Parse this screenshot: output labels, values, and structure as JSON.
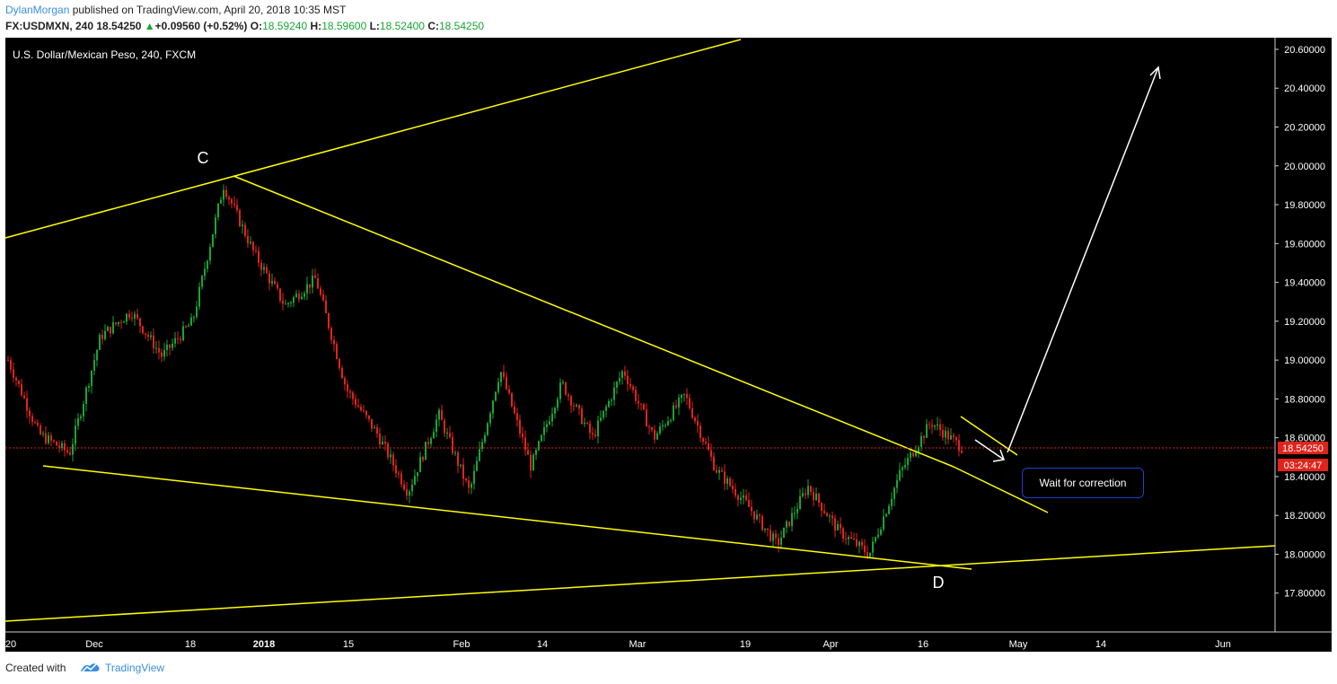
{
  "header": {
    "author": "DylanMorgan",
    "published_text": " published on TradingView.com, April 20, 2018 10:35 MST",
    "symbol": "FX:USDMXN, 240",
    "last": "18.54250",
    "change": "+0.09560 (+0.52%)",
    "o_label": "O:",
    "o_value": "18.59240",
    "h_label": "H:",
    "h_value": "18.59600",
    "l_label": "L:",
    "l_value": "18.52400",
    "c_label": "C:",
    "c_value": "18.54250"
  },
  "chart_data": {
    "type": "candlestick",
    "title": "U.S. Dollar/Mexican Peso, 240, FXCM",
    "y_ticks": [
      "20.60000",
      "20.40000",
      "20.20000",
      "20.00000",
      "19.80000",
      "19.60000",
      "19.40000",
      "19.20000",
      "19.00000",
      "18.80000",
      "18.60000",
      "18.40000",
      "18.20000",
      "18.00000",
      "17.80000"
    ],
    "ylim": [
      17.6,
      20.66
    ],
    "x_ticks": [
      "20",
      "Dec",
      "18",
      "2018",
      "15",
      "Feb",
      "14",
      "Mar",
      "19",
      "Apr",
      "16",
      "May",
      "14",
      "Jun"
    ],
    "price_label": "18.54250",
    "countdown": "03:24:47",
    "annotations": {
      "c": "C",
      "d": "D",
      "callout": "Wait for correction"
    },
    "price_path": [
      19.0,
      18.62,
      18.52,
      19.12,
      19.25,
      19.02,
      19.2,
      19.9,
      19.55,
      19.28,
      19.42,
      18.85,
      18.62,
      18.32,
      18.72,
      18.32,
      18.95,
      18.45,
      18.88,
      18.6,
      18.95,
      18.6,
      18.82,
      18.44,
      18.26,
      18.05,
      18.35,
      18.12,
      18.0,
      18.42,
      18.68,
      18.55
    ],
    "colors": {
      "up": "#17a637",
      "down": "#e0241b",
      "trendline": "#ffff00",
      "arrow": "#ffffff",
      "price_line": "#e0241b"
    }
  },
  "footer": {
    "created_with": "Created with",
    "brand": "TradingView"
  }
}
